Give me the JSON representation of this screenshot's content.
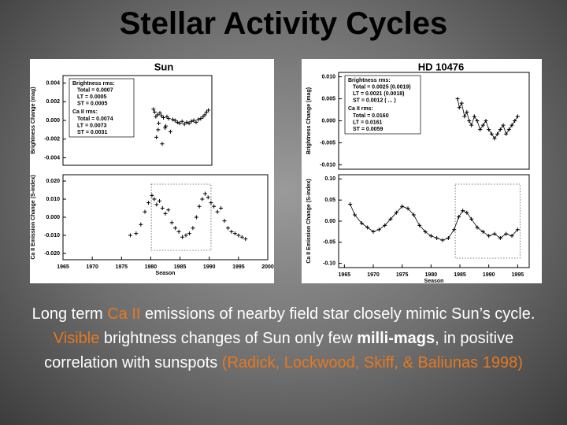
{
  "title": "Stellar Activity Cycles",
  "body": [
    {
      "text": "Long term "
    },
    {
      "text": "Ca II",
      "color": "#e8781e"
    },
    {
      "text": " emissions of nearby field star closely mimic Sun’s cycle.  "
    },
    {
      "text": "Visible",
      "color": "#e8781e"
    },
    {
      "text": " brightness changes of Sun only few "
    },
    {
      "text": "milli-mags",
      "bold": true
    },
    {
      "text": ", in positive correlation with sunspots "
    },
    {
      "text": "(Radick, Lockwood, Skiff, & Baliunas 1998)",
      "color": "#e8781e"
    }
  ],
  "chart_data": [
    {
      "type": "scatter",
      "title": "Sun",
      "ylabel": "Brightness Change (mag)",
      "color": "#000000",
      "xlim": [
        1965,
        1990.5
      ],
      "ylim": [
        -0.0048,
        0.0048
      ],
      "yticks": [
        0.004,
        0.002,
        {
          "value": 0,
          "label": "0.000"
        },
        -0.002,
        -0.004
      ],
      "annotations": [
        "Brightness rms:",
        "Total = 0.0007",
        "LT = 0.0005",
        "ST = 0.0005",
        "Ca II rms:",
        "Total = 0.0074",
        "LT = 0.0073",
        "ST = 0.0031"
      ],
      "x": [
        1980.5,
        1980.7,
        1980.9,
        1981.2,
        1981.4,
        1981.6,
        1981.9,
        1982.2,
        1982.5,
        1982.8,
        1983.1,
        1983.4,
        1983.8,
        1984.2,
        1984.6,
        1985.0,
        1985.4,
        1985.8,
        1986.2,
        1986.6,
        1987.0,
        1987.4,
        1987.8,
        1988.2,
        1988.6,
        1989.0,
        1989.3,
        1989.6,
        1989.9,
        1981.0,
        1981.3,
        1982.0,
        1982.6
      ],
      "values": [
        0.0012,
        0.0009,
        0.0004,
        0.0006,
        -0.0003,
        0.0008,
        0.0005,
        0.0003,
        -0.0008,
        0.0004,
        0.0002,
        -0.0012,
        0.0001,
        0.0,
        -0.0002,
        -0.0003,
        -0.0001,
        -0.0004,
        -0.0002,
        -0.0003,
        -0.0001,
        0.0,
        -0.0002,
        0.0001,
        0.0002,
        0.0004,
        0.0006,
        0.0009,
        0.0011,
        -0.0018,
        -0.001,
        -0.0025,
        -0.0006
      ]
    },
    {
      "type": "scatter",
      "ylabel": "Ca II Emission Change (S-index)",
      "xlabel": "Season",
      "color": "#000000",
      "xlim": [
        1965,
        2000
      ],
      "ylim": [
        -0.0235,
        0.0235
      ],
      "xticks": [
        1965,
        1970,
        1975,
        1980,
        1985,
        1990,
        1995,
        2000
      ],
      "yticks": [
        {
          "value": 0.02,
          "label": "0.020"
        },
        {
          "value": 0.01,
          "label": "0.010"
        },
        {
          "value": 0,
          "label": "0.000"
        },
        {
          "value": -0.01,
          "label": "-0.010"
        },
        {
          "value": -0.02,
          "label": "-0.020"
        }
      ],
      "x": [
        1976.5,
        1977.5,
        1978.3,
        1979.0,
        1979.6,
        1980.2,
        1980.6,
        1981.0,
        1981.5,
        1982.0,
        1982.5,
        1983.0,
        1983.6,
        1984.2,
        1984.8,
        1985.4,
        1986.0,
        1986.6,
        1987.2,
        1987.8,
        1988.3,
        1988.8,
        1989.3,
        1989.8,
        1990.3,
        1990.8,
        1991.4,
        1992.0,
        1992.6,
        1993.2,
        1993.8,
        1994.4,
        1995.0,
        1995.6,
        1996.2
      ],
      "values": [
        -0.01,
        -0.009,
        -0.004,
        0.003,
        0.008,
        0.012,
        0.01,
        0.007,
        0.009,
        0.005,
        0.002,
        0.004,
        -0.003,
        -0.006,
        -0.008,
        -0.011,
        -0.01,
        -0.009,
        -0.006,
        0.0,
        0.006,
        0.01,
        0.013,
        0.011,
        0.008,
        0.006,
        0.003,
        0.005,
        -0.002,
        -0.006,
        -0.008,
        -0.009,
        -0.01,
        -0.011,
        -0.012
      ]
    },
    {
      "type": "scatter",
      "title": "HD 10476",
      "ylabel": "Brightness Change (mag)",
      "color": "#000000",
      "line": true,
      "xlim": [
        1964,
        1997
      ],
      "ylim": [
        -0.011,
        0.011
      ],
      "yticks": [
        {
          "value": 0.01,
          "label": "0.010"
        },
        0.005,
        {
          "value": 0,
          "label": "0.000"
        },
        -0.005,
        {
          "value": -0.01,
          "label": "-0.010"
        }
      ],
      "annotations": [
        "Brightness rms:",
        "Total = 0.0025 (0.0019)",
        "LT = 0.0021 (0.0018)",
        "ST = 0.0012 ( ... )",
        "Ca II rms:",
        "Total = 0.0160",
        "LT = 0.0161",
        "ST = 0.0059"
      ],
      "x": [
        1984.6,
        1984.9,
        1985.3,
        1985.8,
        1986.2,
        1986.6,
        1987.0,
        1987.5,
        1988.0,
        1988.5,
        1989.0,
        1989.5,
        1990.0,
        1990.5,
        1991.0,
        1991.5,
        1992.0,
        1992.5,
        1993.0,
        1993.5,
        1994.0,
        1994.5,
        1995.0
      ],
      "values": [
        0.005,
        0.003,
        0.004,
        0.001,
        0.002,
        0.0,
        -0.001,
        0.001,
        0.0,
        -0.002,
        -0.001,
        0.0,
        -0.002,
        -0.003,
        -0.004,
        -0.003,
        -0.002,
        -0.001,
        -0.003,
        -0.002,
        -0.001,
        0.0,
        0.001
      ]
    },
    {
      "type": "scatter",
      "ylabel": "Ca II Emission Change (S-index)",
      "xlabel": "Season",
      "color": "#000000",
      "line": true,
      "xlim": [
        1964,
        1997
      ],
      "ylim": [
        -0.11,
        0.11
      ],
      "xticks": [
        1965,
        1970,
        1975,
        1980,
        1985,
        1990,
        1995
      ],
      "yticks": [
        {
          "value": 0.1,
          "label": "0.10"
        },
        {
          "value": 0.05,
          "label": "0.05"
        },
        {
          "value": 0,
          "label": "0.00"
        },
        {
          "value": -0.05,
          "label": "-0.05"
        },
        {
          "value": -0.1,
          "label": "-0.10"
        }
      ],
      "x": [
        1966.0,
        1966.8,
        1968.0,
        1969.0,
        1970.0,
        1971.0,
        1972.0,
        1973.0,
        1974.0,
        1975.0,
        1976.0,
        1977.0,
        1978.0,
        1979.0,
        1980.0,
        1981.0,
        1982.0,
        1983.0,
        1984.0,
        1984.8,
        1985.5,
        1986.2,
        1987.0,
        1988.0,
        1989.0,
        1990.0,
        1991.0,
        1992.0,
        1993.0,
        1994.0,
        1995.0
      ],
      "values": [
        0.04,
        0.015,
        -0.005,
        -0.015,
        -0.025,
        -0.02,
        -0.01,
        0.005,
        0.02,
        0.035,
        0.03,
        0.015,
        -0.01,
        -0.025,
        -0.035,
        -0.04,
        -0.045,
        -0.04,
        -0.02,
        0.01,
        0.025,
        0.02,
        0.005,
        -0.015,
        -0.025,
        -0.035,
        -0.03,
        -0.04,
        -0.03,
        -0.035,
        -0.02
      ]
    }
  ]
}
